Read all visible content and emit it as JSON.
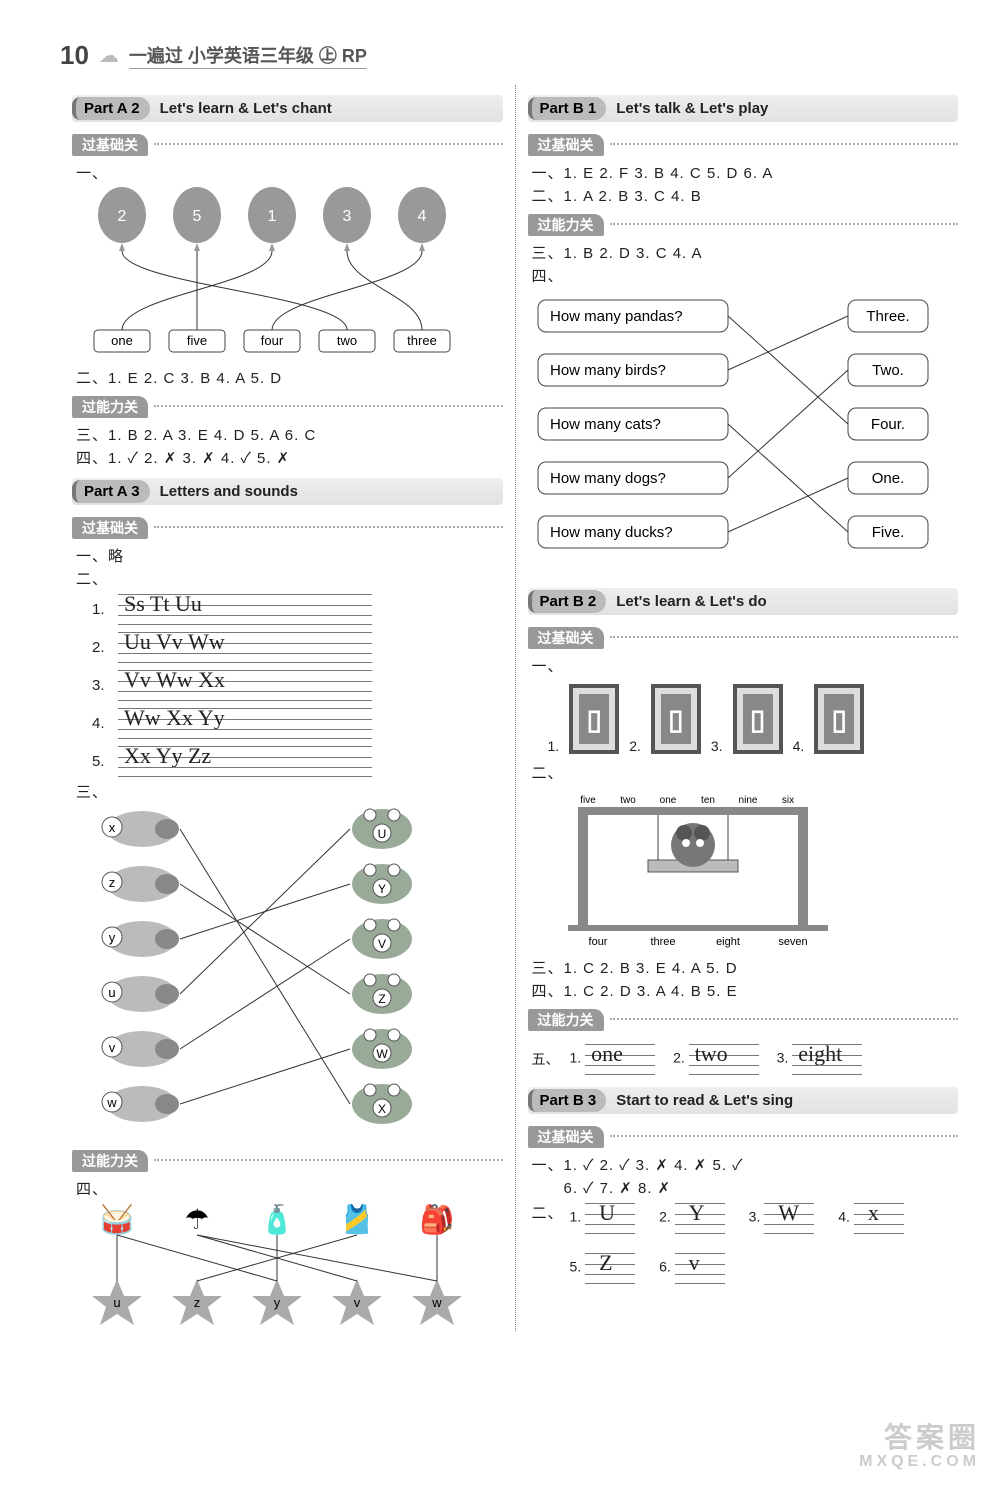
{
  "header": {
    "page_number": "10",
    "title": "一遍过 小学英语三年级 ㊤ RP"
  },
  "left": {
    "partA2": {
      "badge": "Part A 2",
      "title": "Let's learn  &  Let's chant",
      "level1": "过基础关",
      "balloons": {
        "nums": [
          "2",
          "5",
          "1",
          "3",
          "4"
        ],
        "words": [
          "one",
          "five",
          "four",
          "two",
          "three"
        ],
        "connections": [
          [
            0,
            3
          ],
          [
            1,
            1
          ],
          [
            2,
            0
          ],
          [
            3,
            4
          ],
          [
            4,
            2
          ]
        ]
      },
      "ans2": "二、1. E   2. C   3. B   4. A   5. D",
      "level2": "过能力关",
      "ans3": "三、1. B   2. A   3. E   4. D   5. A   6. C",
      "ans4": "四、1. ✓   2. ✗   3. ✗   4. ✓   5. ✗"
    },
    "partA3": {
      "badge": "Part A 3",
      "title": "Letters and sounds",
      "level1": "过基础关",
      "ans1": "一、略",
      "label2": "二、",
      "writing": [
        {
          "n": "1.",
          "t": "Ss   Tt   Uu"
        },
        {
          "n": "2.",
          "t": "Uu   Vv   Ww"
        },
        {
          "n": "3.",
          "t": "Vv   Ww   Xx"
        },
        {
          "n": "4.",
          "t": "Ww  Xx   Yy"
        },
        {
          "n": "5.",
          "t": "Xx   Yy   Zz"
        }
      ],
      "label3": "三、",
      "frogs": {
        "left": [
          "x",
          "z",
          "y",
          "u",
          "v",
          "w"
        ],
        "right": [
          "U",
          "Y",
          "V",
          "Z",
          "W",
          "X"
        ],
        "connections": [
          [
            0,
            5
          ],
          [
            1,
            3
          ],
          [
            2,
            1
          ],
          [
            3,
            0
          ],
          [
            4,
            2
          ],
          [
            5,
            4
          ]
        ]
      },
      "level2": "过能力关",
      "label4": "四、",
      "stars": {
        "letters": [
          "u",
          "z",
          "y",
          "v",
          "w"
        ],
        "connections": [
          [
            0,
            0
          ],
          [
            1,
            3
          ],
          [
            2,
            2
          ],
          [
            3,
            1
          ],
          [
            4,
            4
          ],
          [
            0,
            2
          ],
          [
            1,
            4
          ]
        ]
      }
    }
  },
  "right": {
    "partB1": {
      "badge": "Part B 1",
      "title": "Let's talk & Let's play",
      "level1": "过基础关",
      "ans1": "一、1. E   2. F   3. B   4. C   5. D   6. A",
      "ans2": "二、1. A   2. B   3. C   4. B",
      "level2": "过能力关",
      "ans3": "三、1. B   2. D   3. C   4. A",
      "label4": "四、",
      "match": {
        "left": [
          "How many pandas?",
          "How many birds?",
          "How many cats?",
          "How many dogs?",
          "How many ducks?"
        ],
        "right": [
          "Three.",
          "Two.",
          "Four.",
          "One.",
          "Five."
        ],
        "connections": [
          [
            0,
            2
          ],
          [
            1,
            0
          ],
          [
            2,
            4
          ],
          [
            3,
            1
          ],
          [
            4,
            3
          ]
        ]
      }
    },
    "partB2": {
      "badge": "Part B 2",
      "title": "Let's learn  &  Let's do",
      "level1": "过基础关",
      "label1": "一、",
      "digits": [
        "1.",
        "2.",
        "3.",
        "4."
      ],
      "label2": "二、",
      "swing_labels_top": [
        "five",
        "two",
        "one",
        "ten",
        "nine",
        "six"
      ],
      "swing_labels_bottom": [
        "four",
        "three",
        "eight",
        "seven"
      ],
      "ans3": "三、1. C   2. B   3. E   4. A   5. D",
      "ans4": "四、1. C   2. D   3. A   4. B   5. E",
      "level2": "过能力关",
      "fill5_label": "五、",
      "fill5": [
        {
          "n": "1.",
          "w": "one"
        },
        {
          "n": "2.",
          "w": "two"
        },
        {
          "n": "3.",
          "w": "eight"
        }
      ]
    },
    "partB3": {
      "badge": "Part B 3",
      "title": "Start to read & Let's sing",
      "level1": "过基础关",
      "ans1a": "一、1. ✓   2. ✓   3. ✗   4. ✗   5. ✓",
      "ans1b": "　　6. ✓   7. ✗   8. ✗",
      "label2": "二、",
      "letters": [
        {
          "n": "1.",
          "l": "U"
        },
        {
          "n": "2.",
          "l": "Y"
        },
        {
          "n": "3.",
          "l": "W"
        },
        {
          "n": "4.",
          "l": "x"
        },
        {
          "n": "5.",
          "l": "Z"
        },
        {
          "n": "6.",
          "l": "v"
        }
      ]
    }
  },
  "watermark": {
    "l1": "答案圈",
    "l2": "MXQE.COM"
  }
}
